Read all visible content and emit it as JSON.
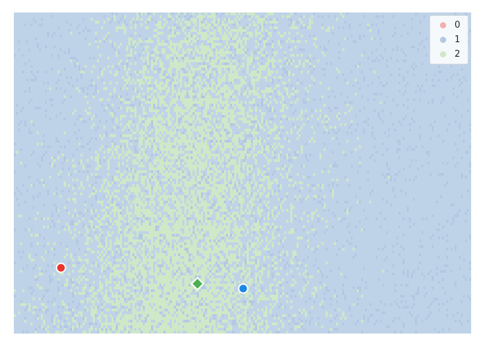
{
  "colors": {
    "background_class": "#bfd3e8",
    "class_0": "#f5aeae",
    "class_1": "#b3c8e3",
    "class_2": "#cfe8c7",
    "marker_red": "#e8362c",
    "marker_green": "#4caf50",
    "marker_blue": "#1e88e5"
  },
  "legend": {
    "items": [
      {
        "label": "0",
        "color": "#f5aeae"
      },
      {
        "label": "1",
        "color": "#b3c8e3"
      },
      {
        "label": "2",
        "color": "#cfe8c7"
      }
    ]
  },
  "markers": [
    {
      "name": "red-circle-marker",
      "shape": "circle",
      "color": "#e8362c"
    },
    {
      "name": "green-diamond-marker",
      "shape": "diamond",
      "color": "#4caf50"
    },
    {
      "name": "blue-circle-marker",
      "shape": "circle",
      "color": "#1e88e5"
    }
  ]
}
